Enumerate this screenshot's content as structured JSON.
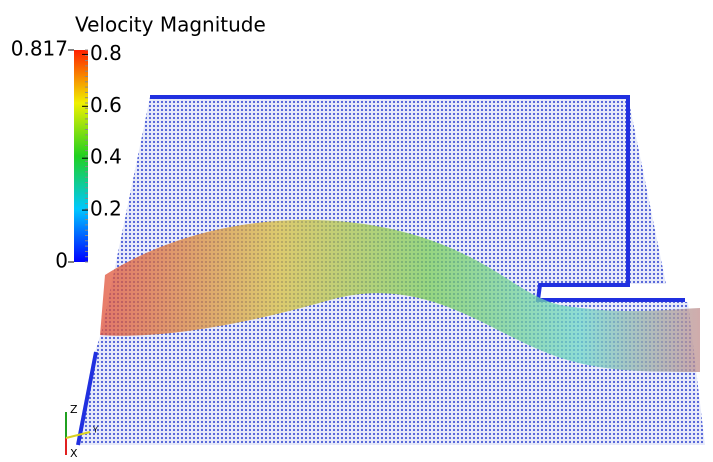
{
  "colorbar": {
    "title": "Velocity Magnitude",
    "min": 0,
    "max": 0.817,
    "ticks": [
      0.2,
      0.4,
      0.6,
      0.8
    ]
  },
  "orientation_axes": {
    "z": "Z",
    "x": "X",
    "y": "Y"
  }
}
